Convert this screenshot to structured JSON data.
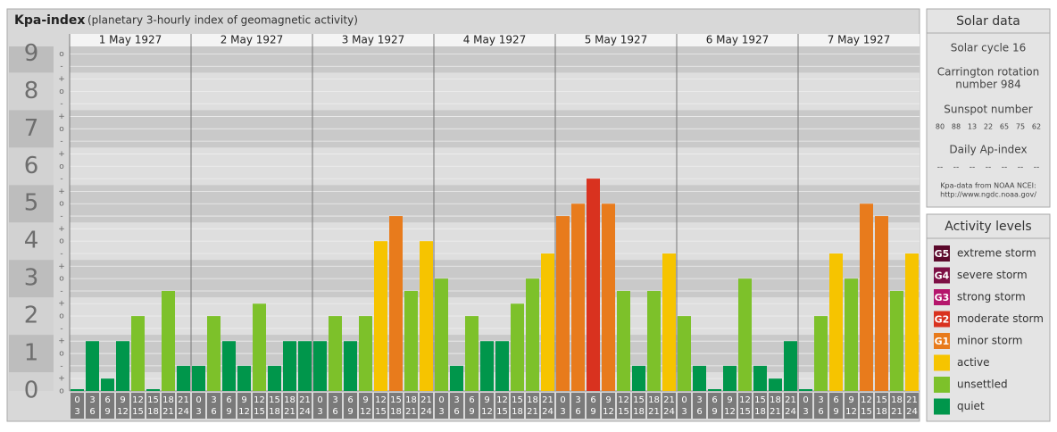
{
  "chart_data": {
    "type": "bar",
    "title": "Kpa-index",
    "subtitle": "(planetary 3-hourly index of geomagnetic activity)",
    "days": [
      "1 May 1927",
      "2 May 1927",
      "3 May 1927",
      "4 May 1927",
      "5 May 1927",
      "6 May 1927",
      "7 May 1927"
    ],
    "slots": [
      [
        "0",
        "3"
      ],
      [
        "3",
        "6"
      ],
      [
        "6",
        "9"
      ],
      [
        "9",
        "12"
      ],
      [
        "12",
        "15"
      ],
      [
        "15",
        "18"
      ],
      [
        "18",
        "21"
      ],
      [
        "21",
        "24"
      ]
    ],
    "values": [
      0,
      1.33,
      0.33,
      1.33,
      2,
      0,
      2.67,
      0.67,
      0.67,
      2,
      1.33,
      0.67,
      2.33,
      0.67,
      1.33,
      1.33,
      1.33,
      2,
      1.33,
      2,
      4,
      4.67,
      2.67,
      4,
      3,
      0.67,
      2,
      1.33,
      1.33,
      2.33,
      3,
      3.67,
      4.67,
      5,
      5.67,
      5,
      2.67,
      0.67,
      2.67,
      3.67,
      2,
      0.67,
      0,
      0.67,
      3,
      0.67,
      0.33,
      1.33,
      0,
      2,
      3.67,
      3,
      5,
      4.67,
      2.67,
      3.67
    ],
    "colors": [
      "#00964b",
      "#00964b",
      "#00964b",
      "#00964b",
      "#7dc12a",
      "#00964b",
      "#7dc12a",
      "#00964b",
      "#00964b",
      "#7dc12a",
      "#00964b",
      "#00964b",
      "#7dc12a",
      "#00964b",
      "#00964b",
      "#00964b",
      "#00964b",
      "#7dc12a",
      "#00964b",
      "#7dc12a",
      "#f6c400",
      "#e87b1c",
      "#7dc12a",
      "#f6c400",
      "#7dc12a",
      "#00964b",
      "#7dc12a",
      "#00964b",
      "#00964b",
      "#7dc12a",
      "#7dc12a",
      "#f6c400",
      "#e87b1c",
      "#e87b1c",
      "#d9321f",
      "#e87b1c",
      "#7dc12a",
      "#00964b",
      "#7dc12a",
      "#f6c400",
      "#7dc12a",
      "#00964b",
      "#00964b",
      "#00964b",
      "#7dc12a",
      "#00964b",
      "#00964b",
      "#00964b",
      "#00964b",
      "#7dc12a",
      "#f6c400",
      "#7dc12a",
      "#e87b1c",
      "#e87b1c",
      "#7dc12a",
      "#f6c400"
    ],
    "ylim": [
      0,
      9.2
    ],
    "yticks": [
      0,
      1,
      2,
      3,
      4,
      5,
      6,
      7,
      8,
      9
    ],
    "minor_ticks": [
      {
        "value": 0,
        "label": "o"
      },
      {
        "value": 0.33,
        "label": "+"
      },
      {
        "value": 0.67,
        "label": "-"
      },
      {
        "value": 1,
        "label": "o"
      },
      {
        "value": 1.33,
        "label": "+"
      },
      {
        "value": 1.67,
        "label": "-"
      },
      {
        "value": 2,
        "label": "o"
      },
      {
        "value": 2.33,
        "label": "+"
      },
      {
        "value": 2.67,
        "label": "-"
      },
      {
        "value": 3,
        "label": "o"
      },
      {
        "value": 3.33,
        "label": "+"
      },
      {
        "value": 3.67,
        "label": "-"
      },
      {
        "value": 4,
        "label": "o"
      },
      {
        "value": 4.33,
        "label": "+"
      },
      {
        "value": 4.67,
        "label": "-"
      },
      {
        "value": 5,
        "label": "o"
      },
      {
        "value": 5.33,
        "label": "+"
      },
      {
        "value": 5.67,
        "label": "-"
      },
      {
        "value": 6,
        "label": "o"
      },
      {
        "value": 6.33,
        "label": "+"
      },
      {
        "value": 6.67,
        "label": "-"
      },
      {
        "value": 7,
        "label": "o"
      },
      {
        "value": 7.33,
        "label": "+"
      },
      {
        "value": 7.67,
        "label": "-"
      },
      {
        "value": 8,
        "label": "o"
      },
      {
        "value": 8.33,
        "label": "+"
      },
      {
        "value": 8.67,
        "label": "-"
      },
      {
        "value": 9,
        "label": "o"
      }
    ],
    "grid": true
  },
  "solar": {
    "title": "Solar data",
    "cycle": "Solar cycle 16",
    "rotation": [
      "Carrington rotation",
      "number 984"
    ],
    "sunspot_title": "Sunspot number",
    "sunspots": [
      80,
      88,
      13,
      22,
      65,
      75,
      62
    ],
    "ap_title": "Daily Ap-index",
    "ap": [
      "--",
      "--",
      "--",
      "--",
      "--",
      "--",
      "--"
    ],
    "source": [
      "Kpa-data from NOAA NCEI:",
      "http://www.ngdc.noaa.gov/"
    ]
  },
  "legend": {
    "title": "Activity levels",
    "items": [
      {
        "badge": "G5",
        "label": "extreme storm",
        "color": "#5c0a2c"
      },
      {
        "badge": "G4",
        "label": "severe storm",
        "color": "#7d1045"
      },
      {
        "badge": "G3",
        "label": "strong storm",
        "color": "#b5166c"
      },
      {
        "badge": "G2",
        "label": "moderate storm",
        "color": "#d9321f"
      },
      {
        "badge": "G1",
        "label": "minor storm",
        "color": "#e87b1c"
      },
      {
        "label": "active",
        "color": "#f6c400"
      },
      {
        "label": "unsettled",
        "color": "#7dc12a"
      },
      {
        "label": "quiet",
        "color": "#00964b"
      }
    ]
  }
}
